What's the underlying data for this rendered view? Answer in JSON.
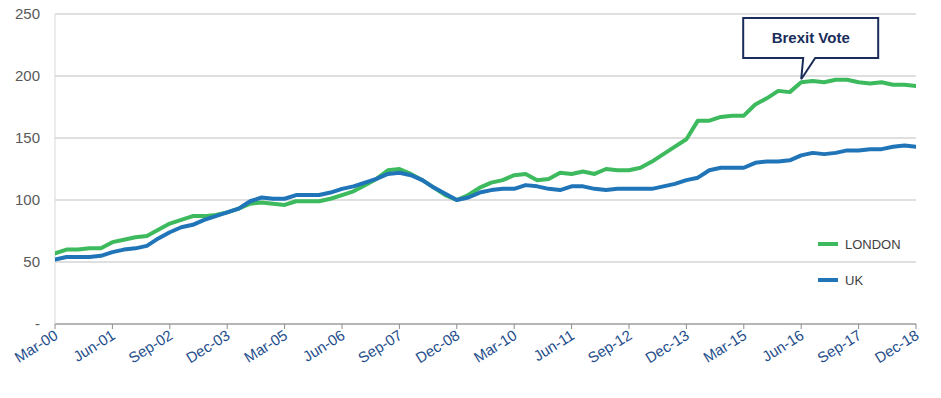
{
  "chart_data": {
    "type": "line",
    "categories": [
      "Mar-00",
      null,
      null,
      null,
      null,
      "Jun-01",
      null,
      null,
      null,
      null,
      "Sep-02",
      null,
      null,
      null,
      null,
      "Dec-03",
      null,
      null,
      null,
      null,
      "Mar-05",
      null,
      null,
      null,
      null,
      "Jun-06",
      null,
      null,
      null,
      null,
      "Sep-07",
      null,
      null,
      null,
      null,
      "Dec-08",
      null,
      null,
      null,
      null,
      "Mar-10",
      null,
      null,
      null,
      null,
      "Jun-11",
      null,
      null,
      null,
      null,
      "Sep-12",
      null,
      null,
      null,
      null,
      "Dec-13",
      null,
      null,
      null,
      null,
      "Mar-15",
      null,
      null,
      null,
      null,
      "Jun-16",
      null,
      null,
      null,
      null,
      "Sep-17",
      null,
      null,
      null,
      null,
      "Dec-18"
    ],
    "series": [
      {
        "name": "LONDON",
        "color": "#3dba5e",
        "values": [
          57,
          60,
          60,
          61,
          61,
          66,
          68,
          70,
          71,
          76,
          81,
          84,
          87,
          87,
          88,
          90,
          93,
          97,
          98,
          97,
          96,
          99,
          99,
          99,
          101,
          104,
          107,
          112,
          117,
          124,
          125,
          121,
          116,
          110,
          104,
          100,
          104,
          110,
          114,
          116,
          120,
          121,
          116,
          117,
          122,
          121,
          123,
          121,
          125,
          124,
          124,
          126,
          131,
          137,
          143,
          149,
          164,
          164,
          167,
          168,
          168,
          177,
          182,
          188,
          187,
          195,
          196,
          195,
          197,
          197,
          195,
          194,
          195,
          193,
          193,
          192
        ]
      },
      {
        "name": "UK",
        "color": "#2074b8",
        "values": [
          52,
          54,
          54,
          54,
          55,
          58,
          60,
          61,
          63,
          69,
          74,
          78,
          80,
          84,
          87,
          90,
          93,
          99,
          102,
          101,
          101,
          104,
          104,
          104,
          106,
          109,
          111,
          114,
          117,
          121,
          122,
          120,
          116,
          110,
          105,
          100,
          102,
          106,
          108,
          109,
          109,
          112,
          111,
          109,
          108,
          111,
          111,
          109,
          108,
          109,
          109,
          109,
          109,
          111,
          113,
          116,
          118,
          124,
          126,
          126,
          126,
          130,
          131,
          131,
          132,
          136,
          138,
          137,
          138,
          140,
          140,
          141,
          141,
          143,
          144,
          143
        ]
      }
    ],
    "ylim": [
      0,
      250
    ],
    "yticks": [
      {
        "value": 0,
        "label": "-"
      },
      50,
      100,
      150,
      200,
      250
    ],
    "grid": true,
    "legend": "right",
    "annotations": [
      {
        "text": "Brexit Vote",
        "x": "Jun-16",
        "y": 195
      }
    ]
  }
}
